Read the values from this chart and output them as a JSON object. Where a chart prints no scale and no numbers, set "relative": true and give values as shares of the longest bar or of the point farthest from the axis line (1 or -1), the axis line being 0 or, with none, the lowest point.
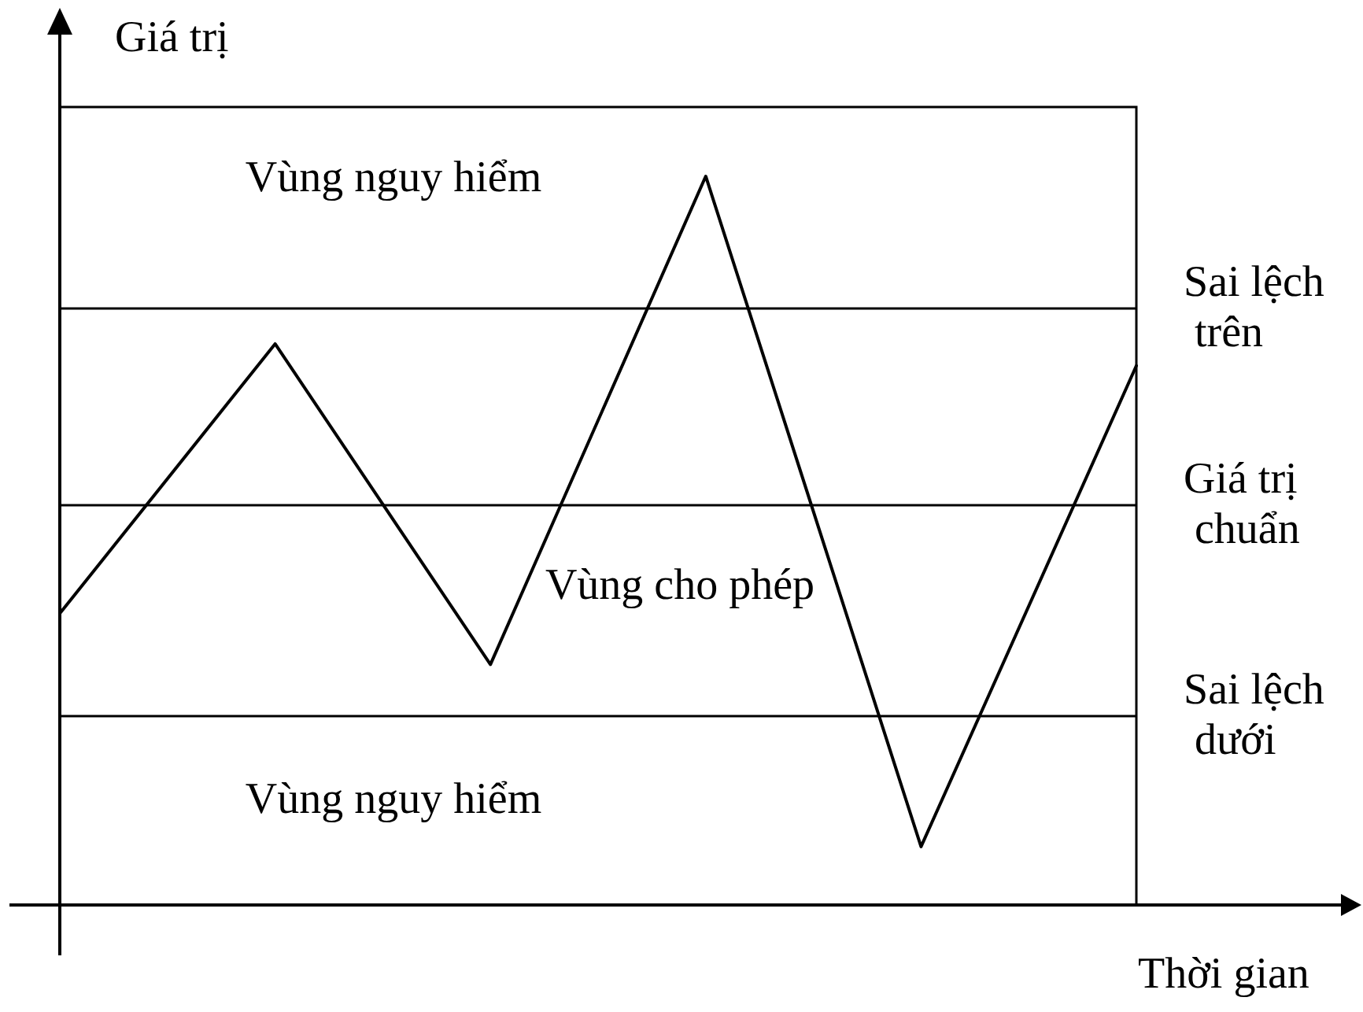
{
  "chart_data": {
    "type": "line",
    "xlabel": "Thời gian",
    "ylabel": "Giá trị",
    "relative": true,
    "categories": [
      null,
      null,
      null,
      null,
      null,
      null
    ],
    "values": [
      0.4,
      0.77,
      0.33,
      1,
      0.08,
      0.74
    ],
    "color": "#000000",
    "marker": "none",
    "line_style": "solid",
    "ref_lines": [
      {
        "axis": "y",
        "value": 0.82,
        "label": "Sai lệch trên"
      },
      {
        "axis": "y",
        "value": 0.55,
        "label": "Giá trị chuẩn"
      },
      {
        "axis": "y",
        "value": 0.26,
        "label": "Sai lệch dưới"
      }
    ],
    "annotations": [
      "Vùng nguy hiểm",
      "Vùng cho phép",
      "Vùng nguy hiểm"
    ]
  }
}
